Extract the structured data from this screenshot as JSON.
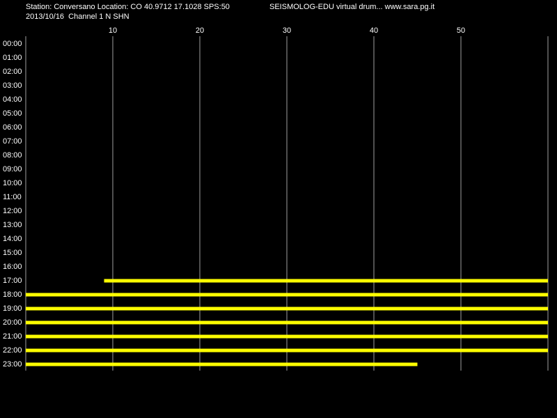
{
  "chart_data": {
    "type": "helicorder",
    "title": "Station: Conversano Location: CO 40.9712 17.1028 SPS:50",
    "subtitle": "2013/10/16  Channel 1 N SHN",
    "annotation": "SEISMOLOG-EDU virtual drum... www.sara.pg.it",
    "categories": [
      "00:00",
      "01:00",
      "02:00",
      "03:00",
      "04:00",
      "05:00",
      "06:00",
      "07:00",
      "08:00",
      "09:00",
      "10:00",
      "11:00",
      "12:00",
      "13:00",
      "14:00",
      "15:00",
      "16:00",
      "17:00",
      "18:00",
      "19:00",
      "20:00",
      "21:00",
      "22:00",
      "23:00"
    ],
    "trace_start": [
      null,
      null,
      null,
      null,
      null,
      null,
      null,
      null,
      null,
      null,
      null,
      null,
      null,
      null,
      null,
      null,
      null,
      9,
      0,
      0,
      0,
      0,
      0,
      0
    ],
    "trace_end": [
      null,
      null,
      null,
      null,
      null,
      null,
      null,
      null,
      null,
      null,
      null,
      null,
      null,
      null,
      null,
      null,
      null,
      60,
      60,
      60,
      60,
      60,
      60,
      45
    ],
    "color": "#ffff00",
    "xlim": [
      0,
      60
    ],
    "xticks": [
      10,
      20,
      30,
      40,
      50
    ],
    "grid": true
  }
}
